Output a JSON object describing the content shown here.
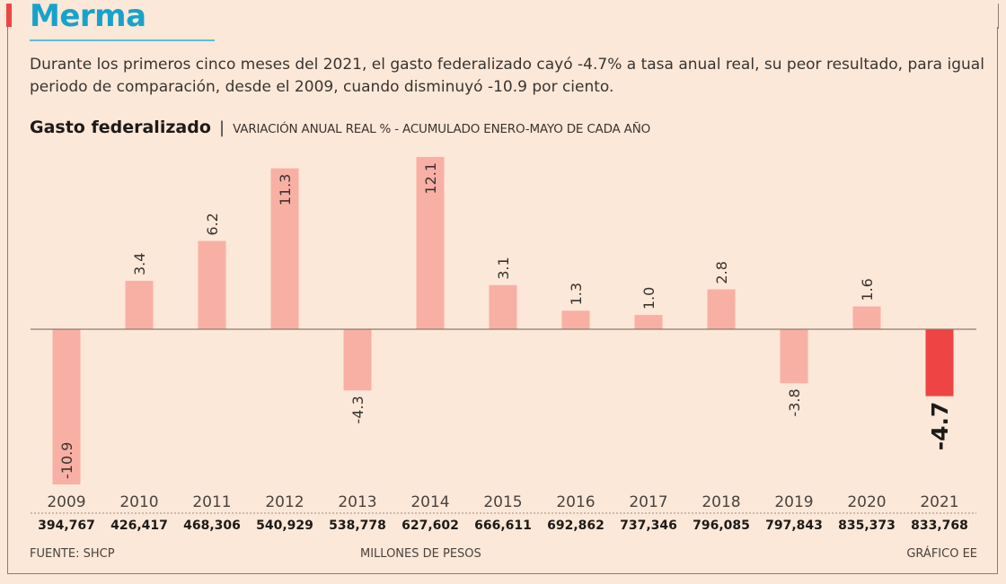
{
  "header": {
    "title": "Merma",
    "lede": "Durante los primeros cinco meses del 2021, el gasto federalizado cayó -4.7% a tasa anual real, su peor resultado, para igual periodo de comparación, desde el 2009, cuando disminuyó -10.9 por ciento."
  },
  "chart_head": {
    "title": "Gasto federalizado",
    "separator": "|",
    "subtitle": "VARIACIÓN ANUAL REAL % - ACUMULADO ENERO-MAYO DE CADA AÑO"
  },
  "footer": {
    "source": "FUENTE: SHCP",
    "units": "MILLONES DE PESOS",
    "credit": "GRÁFICO EE"
  },
  "colors": {
    "bar": "#f8b0a4",
    "highlight_bar": "#ee4444",
    "title": "#17a3c9",
    "background": "#fce8d8"
  },
  "chart_data": {
    "type": "bar",
    "title": "Gasto federalizado",
    "subtitle": "VARIACIÓN ANUAL REAL % - ACUMULADO ENERO-MAYO DE CADA AÑO",
    "xlabel": "",
    "ylabel": "Variación anual real %",
    "categories": [
      "2009",
      "2010",
      "2011",
      "2012",
      "2013",
      "2014",
      "2015",
      "2016",
      "2017",
      "2018",
      "2019",
      "2020",
      "2021"
    ],
    "values": [
      -10.9,
      3.4,
      6.2,
      11.3,
      -4.3,
      12.1,
      3.1,
      1.3,
      1.0,
      2.8,
      -3.8,
      1.6,
      -4.7
    ],
    "value_labels": [
      "-10.9",
      "3.4",
      "6.2",
      "11.3",
      "-4.3",
      "12.1",
      "3.1",
      "1.3",
      "1.0",
      "2.8",
      "-3.8",
      "1.6",
      "-4.7"
    ],
    "highlight": "2021",
    "amounts_label": "MILLONES DE PESOS",
    "amounts": [
      "394,767",
      "426,417",
      "468,306",
      "540,929",
      "538,778",
      "627,602",
      "666,611",
      "692,862",
      "737,346",
      "796,085",
      "797,843",
      "835,373",
      "833,768"
    ],
    "ylim": [
      -10.9,
      12.1
    ],
    "grid": false,
    "legend": "none"
  }
}
